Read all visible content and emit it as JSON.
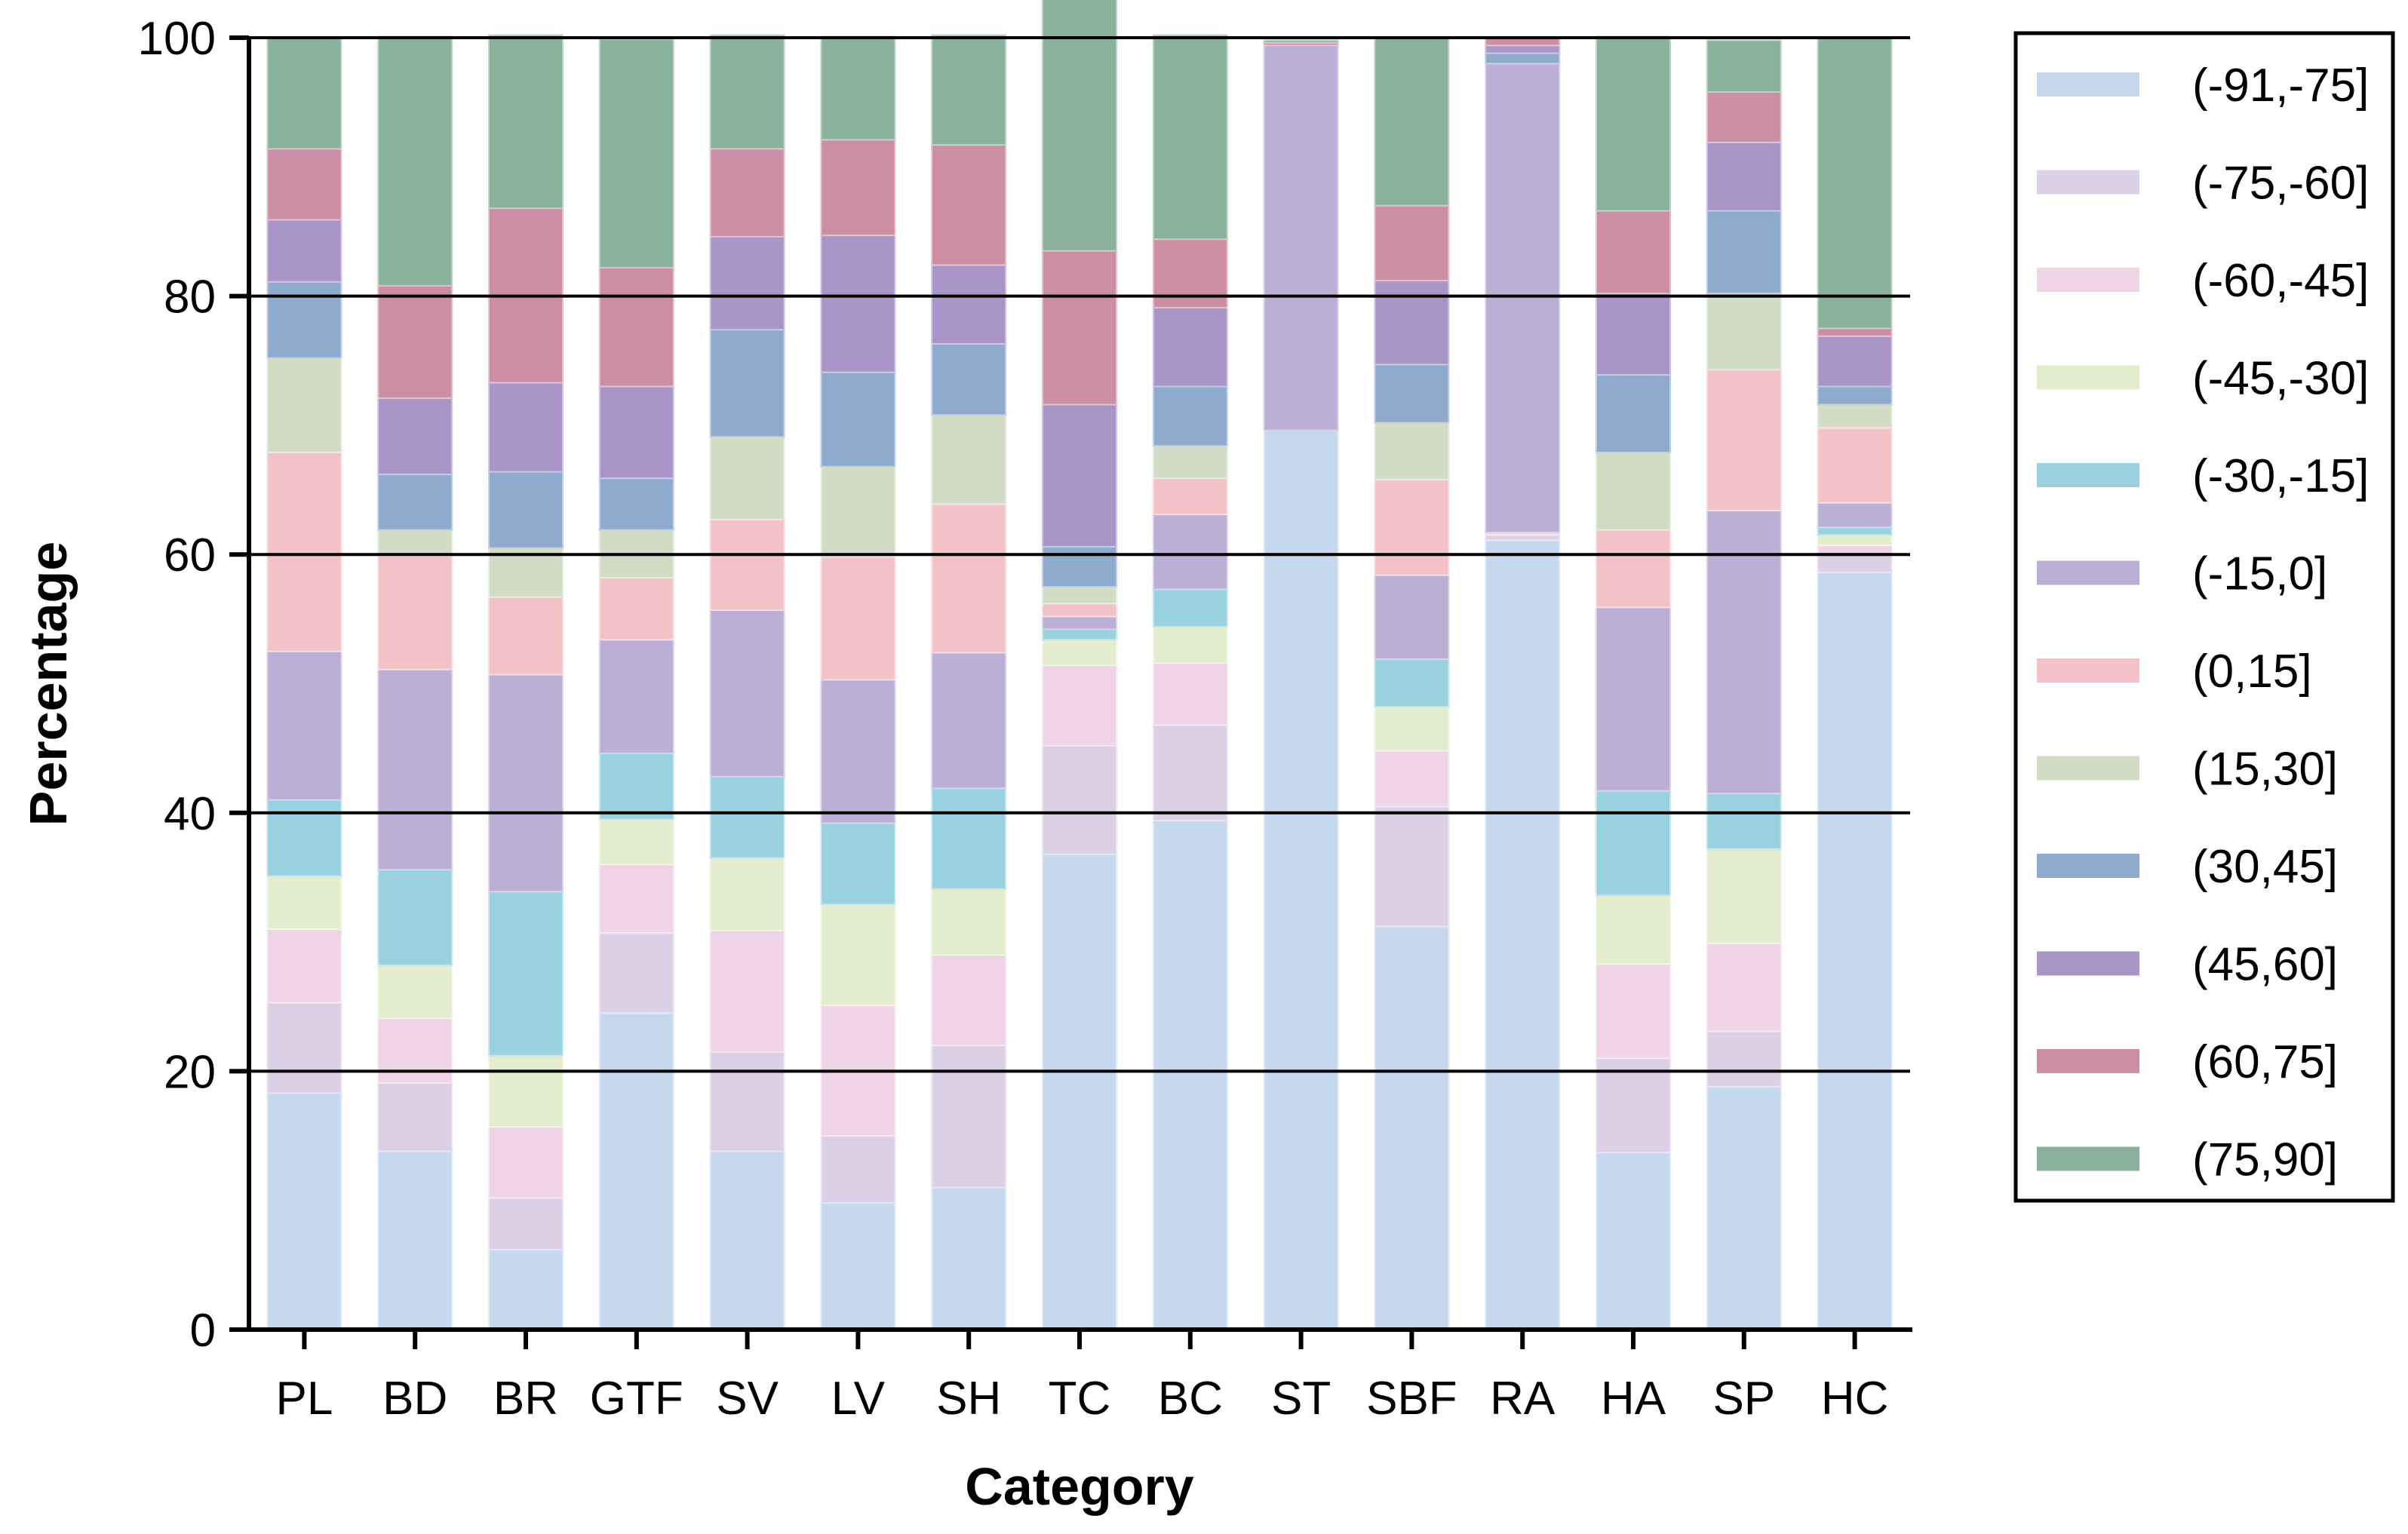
{
  "chart_data": {
    "type": "bar",
    "stacked": true,
    "title": "",
    "xlabel": "Category",
    "ylabel": "Percentage",
    "ylim": [
      0,
      100
    ],
    "yticks": [
      0,
      20,
      40,
      60,
      80,
      100
    ],
    "grid": "horizontal",
    "legend_position": "right",
    "categories": [
      "PL",
      "BD",
      "BR",
      "GTF",
      "SV",
      "LV",
      "SH",
      "TC",
      "BC",
      "ST",
      "SBF",
      "RA",
      "HA",
      "SP",
      "HC"
    ],
    "series": [
      {
        "name": "(-91,-75]",
        "color": "#c5d8ee",
        "values": [
          18.3,
          13.8,
          6.2,
          24.5,
          13.8,
          9.8,
          11.0,
          36.8,
          39.4,
          69.6,
          31.2,
          61.1,
          13.7,
          18.8,
          58.6
        ]
      },
      {
        "name": "(-75,-60]",
        "color": "#dcd0e6",
        "values": [
          7.0,
          5.3,
          4.0,
          6.2,
          7.7,
          5.2,
          11.0,
          8.4,
          7.4,
          0.0,
          9.3,
          0.4,
          7.3,
          4.3,
          1.4
        ]
      },
      {
        "name": "(-60,-45]",
        "color": "#efd3e6",
        "values": [
          5.7,
          5.0,
          5.5,
          5.3,
          9.4,
          10.1,
          7.0,
          6.2,
          4.8,
          0.0,
          4.3,
          0.2,
          7.3,
          6.8,
          0.7
        ]
      },
      {
        "name": "(-45,-30]",
        "color": "#e3edcd",
        "values": [
          4.1,
          4.1,
          5.5,
          3.5,
          5.6,
          7.8,
          5.1,
          2.0,
          2.8,
          0.0,
          3.4,
          0.0,
          5.3,
          7.3,
          0.8
        ]
      },
      {
        "name": "(-30,-15]",
        "color": "#99d1df",
        "values": [
          5.9,
          7.4,
          12.7,
          5.1,
          6.3,
          6.3,
          7.8,
          0.8,
          2.9,
          0.0,
          3.7,
          0.0,
          8.1,
          4.3,
          0.6
        ]
      },
      {
        "name": "(-15,0]",
        "color": "#bbafd5",
        "values": [
          11.5,
          15.5,
          16.8,
          8.8,
          12.9,
          11.1,
          10.5,
          1.0,
          5.8,
          29.8,
          6.5,
          36.3,
          14.2,
          21.9,
          1.9
        ]
      },
      {
        "name": "(0,15]",
        "color": "#f2c2c6",
        "values": [
          15.4,
          8.8,
          6.0,
          4.8,
          7.0,
          9.5,
          11.5,
          1.0,
          2.8,
          0.0,
          7.4,
          0.0,
          6.0,
          10.9,
          5.8
        ]
      },
      {
        "name": "(15,30]",
        "color": "#d2dcc5",
        "values": [
          7.3,
          2.0,
          3.8,
          3.7,
          6.4,
          7.0,
          6.9,
          1.3,
          2.5,
          0.0,
          4.4,
          0.0,
          6.0,
          5.9,
          1.8
        ]
      },
      {
        "name": "(30,45]",
        "color": "#8eaacd",
        "values": [
          5.9,
          4.3,
          5.9,
          4.0,
          8.3,
          7.3,
          5.5,
          3.1,
          4.6,
          0.0,
          4.5,
          0.8,
          6.0,
          6.4,
          1.4
        ]
      },
      {
        "name": "(45,60]",
        "color": "#a995c8",
        "values": [
          4.8,
          5.9,
          6.9,
          7.1,
          7.2,
          10.6,
          6.1,
          11.0,
          6.1,
          0.0,
          6.5,
          0.6,
          6.3,
          5.3,
          3.9
        ]
      },
      {
        "name": "(60,75]",
        "color": "#cc8ea5",
        "values": [
          5.5,
          8.7,
          13.5,
          9.2,
          6.8,
          7.4,
          9.3,
          11.9,
          5.3,
          0.2,
          5.8,
          0.6,
          6.4,
          3.9,
          0.6
        ]
      },
      {
        "name": "(75,90]",
        "color": "#8ab19b",
        "values": [
          8.6,
          19.3,
          13.4,
          17.7,
          8.8,
          8.0,
          8.5,
          19.7,
          15.8,
          0.2,
          13.0,
          0.0,
          13.5,
          4.0,
          22.5
        ]
      }
    ]
  }
}
